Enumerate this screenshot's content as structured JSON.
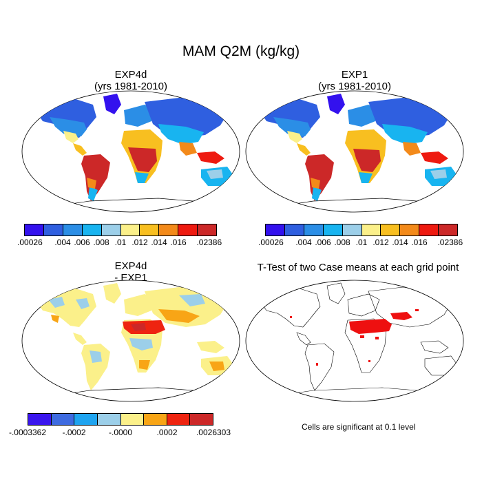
{
  "figure": {
    "title": "MAM Q2M (kg/kg)"
  },
  "panels": {
    "p1": {
      "title_line1": "EXP4d",
      "title_line2": "(yrs 1981-2010)"
    },
    "p2": {
      "title_line1": "EXP1",
      "title_line2": "(yrs 1981-2010)"
    },
    "p3": {
      "title_line1": "EXP4d",
      "title_line2": "- EXP1"
    },
    "p4": {
      "title_line1": "T-Test of two Case means at each grid point",
      "note": "Cells are significant at 0.1 level"
    }
  },
  "colorbars": {
    "abs": {
      "colors": [
        "#3311ee",
        "#2f5fe0",
        "#2b8ee6",
        "#18b4f0",
        "#9ccfe9",
        "#fbf08a",
        "#f8bf20",
        "#f38a1a",
        "#ee1a10",
        "#cc2828"
      ],
      "labels": [
        ".00026",
        ".004",
        ".006",
        ".008",
        ".01",
        ".012",
        ".014",
        ".016",
        ".02386"
      ]
    },
    "diff": {
      "colors": [
        "#3a16ee",
        "#3e6be0",
        "#1fa4f0",
        "#9ccfe9",
        "#fbf08a",
        "#f8a516",
        "#ee2410",
        "#cc2828"
      ],
      "labels": [
        "-.0003362",
        "-.0002",
        "-.0000",
        ".0002",
        ".0026303"
      ]
    }
  }
}
